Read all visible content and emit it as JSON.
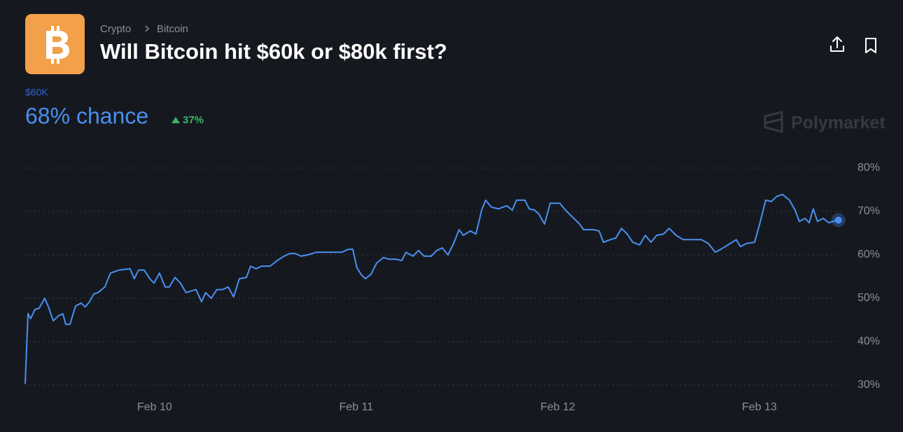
{
  "header": {
    "breadcrumb": [
      "Crypto",
      "Bitcoin"
    ],
    "title": "Will Bitcoin hit $60k or $80k first?"
  },
  "outcome": {
    "name": "$60K",
    "chance": "68% chance",
    "change": "37%"
  },
  "watermark": "Polymarket",
  "chart_data": {
    "type": "line",
    "color": "#4a8ff0",
    "grid": true,
    "xlim": [
      9.358,
      13.417
    ],
    "ylim": [
      30,
      80
    ],
    "xticks": [
      {
        "value": 10,
        "label": "Feb 10"
      },
      {
        "value": 11,
        "label": "Feb 11"
      },
      {
        "value": 12,
        "label": "Feb 12"
      },
      {
        "value": 13,
        "label": "Feb 13"
      }
    ],
    "yticks": [
      {
        "value": 30,
        "label": "30%"
      },
      {
        "value": 40,
        "label": "40%"
      },
      {
        "value": 50,
        "label": "50%"
      },
      {
        "value": 60,
        "label": "60%"
      },
      {
        "value": 70,
        "label": "70%"
      },
      {
        "value": 80,
        "label": "80%"
      }
    ],
    "x": [
      9.358,
      9.372,
      9.385,
      9.406,
      9.427,
      9.455,
      9.476,
      9.497,
      9.524,
      9.545,
      9.559,
      9.58,
      9.608,
      9.635,
      9.656,
      9.677,
      9.698,
      9.719,
      9.753,
      9.781,
      9.823,
      9.878,
      9.899,
      9.92,
      9.948,
      9.976,
      9.997,
      10.024,
      10.052,
      10.073,
      10.101,
      10.128,
      10.156,
      10.177,
      10.205,
      10.233,
      10.253,
      10.281,
      10.309,
      10.337,
      10.365,
      10.392,
      10.42,
      10.455,
      10.476,
      10.503,
      10.531,
      10.573,
      10.608,
      10.642,
      10.67,
      10.698,
      10.726,
      10.76,
      10.802,
      10.865,
      10.927,
      10.962,
      10.983,
      11.003,
      11.024,
      11.045,
      11.073,
      11.101,
      11.135,
      11.163,
      11.198,
      11.226,
      11.247,
      11.281,
      11.309,
      11.337,
      11.372,
      11.399,
      11.427,
      11.455,
      11.483,
      11.51,
      11.531,
      11.566,
      11.594,
      11.622,
      11.642,
      11.67,
      11.705,
      11.747,
      11.774,
      11.795,
      11.837,
      11.858,
      11.885,
      11.906,
      11.934,
      11.962,
      12.01,
      12.038,
      12.073,
      12.108,
      12.128,
      12.177,
      12.205,
      12.226,
      12.26,
      12.288,
      12.316,
      12.344,
      12.372,
      12.406,
      12.434,
      12.462,
      12.49,
      12.524,
      12.552,
      12.587,
      12.622,
      12.67,
      12.712,
      12.747,
      12.781,
      12.809,
      12.844,
      12.885,
      12.906,
      12.934,
      12.976,
      13.003,
      13.031,
      13.059,
      13.087,
      13.115,
      13.149,
      13.177,
      13.198,
      13.226,
      13.247,
      13.267,
      13.288,
      13.316,
      13.344,
      13.365,
      13.392
    ],
    "values": [
      30.3,
      46.5,
      45.3,
      47.4,
      47.7,
      50,
      47.7,
      44.8,
      46,
      46.4,
      44,
      44,
      48.2,
      48.9,
      48,
      49.2,
      51,
      51.3,
      52.6,
      55.8,
      56.5,
      56.8,
      54.5,
      56.5,
      56.5,
      54.5,
      53.5,
      55.8,
      52.6,
      52.6,
      54.8,
      53.5,
      51.3,
      51.6,
      52,
      49.2,
      51.3,
      50,
      52,
      52,
      52.6,
      50.3,
      54.5,
      54.8,
      57.4,
      56.8,
      57.4,
      57.4,
      58.7,
      59.7,
      60.3,
      60.3,
      59.7,
      60,
      60.6,
      60.6,
      60.6,
      61.3,
      61.3,
      57.1,
      55.5,
      54.5,
      55.5,
      58.1,
      59.4,
      59,
      59,
      58.7,
      60.6,
      59.7,
      61,
      59.7,
      59.7,
      61,
      61.6,
      60,
      62.6,
      65.8,
      64.5,
      65.5,
      64.8,
      70.3,
      72.6,
      71,
      70.6,
      71.3,
      70.3,
      72.6,
      72.6,
      70.6,
      70.3,
      69.4,
      67.1,
      71.9,
      71.9,
      70.3,
      68.7,
      67.1,
      65.8,
      65.8,
      65.5,
      62.9,
      63.5,
      63.9,
      66.1,
      64.8,
      62.9,
      62.3,
      64.5,
      62.9,
      64.5,
      64.8,
      66.1,
      64.5,
      63.5,
      63.5,
      63.5,
      62.6,
      60.6,
      61.3,
      62.3,
      63.5,
      61.9,
      62.6,
      62.9,
      67.4,
      72.6,
      72.3,
      73.5,
      73.9,
      72.6,
      70.3,
      67.7,
      68.4,
      67.4,
      70.6,
      67.7,
      68.4,
      67.4,
      67.7,
      68
    ]
  }
}
